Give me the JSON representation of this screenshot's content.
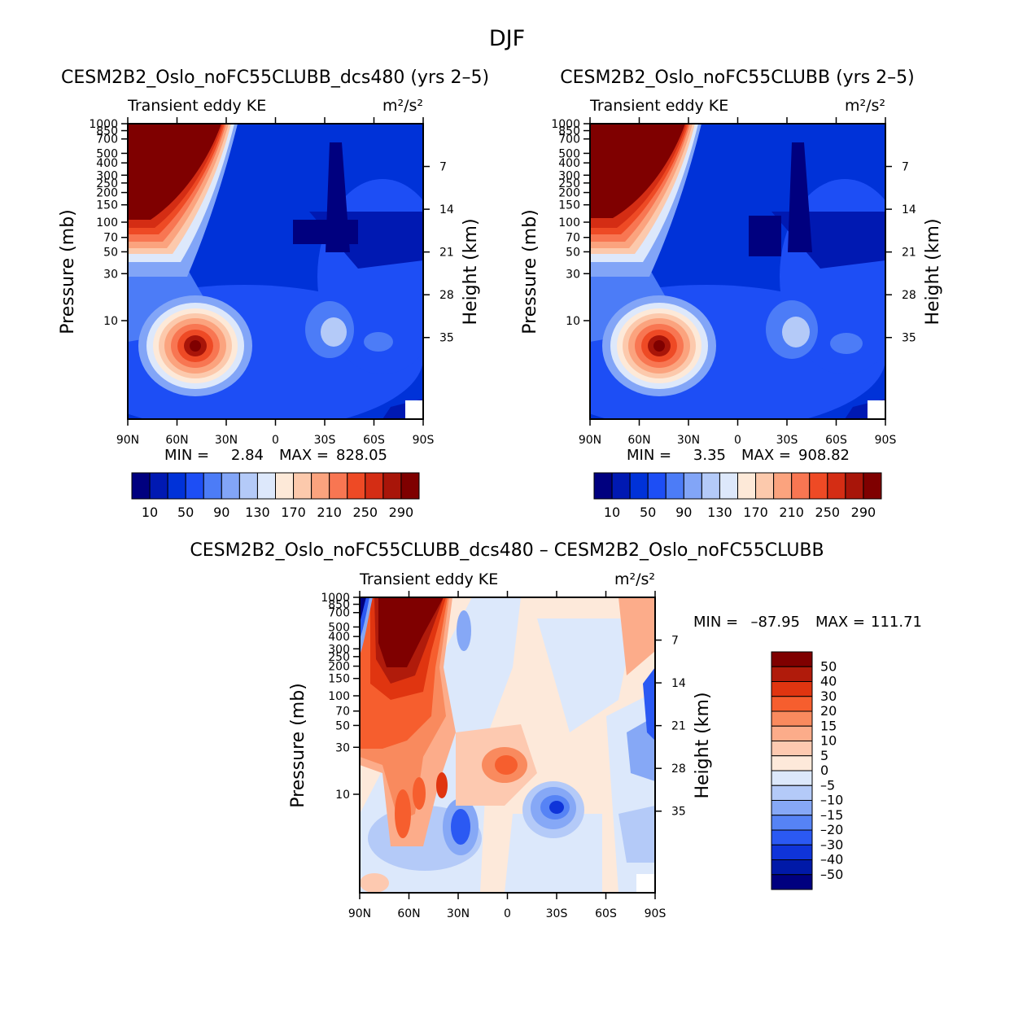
{
  "figure": {
    "title": "DJF"
  },
  "panels": {
    "a": {
      "title": "CESM2B2_Oslo_noFC55CLUBB_dcs480 (yrs 2–5)",
      "min_label": "MIN =",
      "min_value": "2.84",
      "max_label": "MAX =",
      "max_value": "828.05"
    },
    "b": {
      "title": "CESM2B2_Oslo_noFC55CLUBB (yrs 2–5)",
      "min_label": "MIN =",
      "min_value": "3.35",
      "max_label": "MAX =",
      "max_value": "908.82"
    },
    "c": {
      "title": "CESM2B2_Oslo_noFC55CLUBB_dcs480 – CESM2B2_Oslo_noFC55CLUBB",
      "min_label": "MIN =",
      "min_value": "–87.95",
      "max_label": "MAX =",
      "max_value": "111.71"
    }
  },
  "chart_data": [
    {
      "type": "heatmap",
      "panel": "a",
      "title": "CESM2B2_Oslo_noFC55CLUBB_dcs480 (yrs 2–5)",
      "left_string": "Transient eddy KE",
      "units": "m²/s²",
      "xlabel": "",
      "ylabel": "Pressure (mb)",
      "y2label": "Height (km)",
      "x_ticks": [
        "90N",
        "60N",
        "30N",
        "0",
        "30S",
        "60S",
        "90S"
      ],
      "y_ticks": [
        "10",
        "30",
        "50",
        "70",
        "100",
        "150",
        "200",
        "250",
        "300",
        "400",
        "500",
        "700",
        "850",
        "1000"
      ],
      "y2_ticks": [
        "35",
        "28",
        "21",
        "14",
        "7"
      ],
      "contour_levels": [
        10,
        30,
        50,
        70,
        90,
        110,
        130,
        150,
        170,
        190,
        210,
        230,
        250,
        270,
        290
      ],
      "colorbar_labels": [
        "10",
        "50",
        "90",
        "130",
        "170",
        "210",
        "250",
        "290"
      ],
      "min": 2.84,
      "max": 828.05
    },
    {
      "type": "heatmap",
      "panel": "b",
      "title": "CESM2B2_Oslo_noFC55CLUBB (yrs 2–5)",
      "left_string": "Transient eddy KE",
      "units": "m²/s²",
      "xlabel": "",
      "ylabel": "Pressure (mb)",
      "y2label": "Height (km)",
      "x_ticks": [
        "90N",
        "60N",
        "30N",
        "0",
        "30S",
        "60S",
        "90S"
      ],
      "y_ticks": [
        "10",
        "30",
        "50",
        "70",
        "100",
        "150",
        "200",
        "250",
        "300",
        "400",
        "500",
        "700",
        "850",
        "1000"
      ],
      "y2_ticks": [
        "35",
        "28",
        "21",
        "14",
        "7"
      ],
      "contour_levels": [
        10,
        30,
        50,
        70,
        90,
        110,
        130,
        150,
        170,
        190,
        210,
        230,
        250,
        270,
        290
      ],
      "colorbar_labels": [
        "10",
        "50",
        "90",
        "130",
        "170",
        "210",
        "250",
        "290"
      ],
      "min": 3.35,
      "max": 908.82
    },
    {
      "type": "heatmap",
      "panel": "c",
      "title": "CESM2B2_Oslo_noFC55CLUBB_dcs480 – CESM2B2_Oslo_noFC55CLUBB",
      "left_string": "Transient eddy KE",
      "units": "m²/s²",
      "xlabel": "",
      "ylabel": "Pressure (mb)",
      "y2label": "Height (km)",
      "x_ticks": [
        "90N",
        "60N",
        "30N",
        "0",
        "30S",
        "60S",
        "90S"
      ],
      "y_ticks": [
        "10",
        "30",
        "50",
        "70",
        "100",
        "150",
        "200",
        "250",
        "300",
        "400",
        "500",
        "700",
        "850",
        "1000"
      ],
      "y2_ticks": [
        "35",
        "28",
        "21",
        "14",
        "7"
      ],
      "colorbar_labels": [
        "50",
        "40",
        "30",
        "20",
        "15",
        "10",
        "5",
        "0",
        "–5",
        "–10",
        "–15",
        "–20",
        "–30",
        "–40",
        "–50"
      ],
      "min": -87.95,
      "max": 111.71
    }
  ],
  "colors": {
    "abs_palette": [
      "#00007f",
      "#0019b2",
      "#0032d8",
      "#1d4ef5",
      "#4c7cf7",
      "#82a5f7",
      "#b4caf8",
      "#dde8fb",
      "#fde9d8",
      "#fcc9ac",
      "#fba37e",
      "#f87652",
      "#ee4a25",
      "#d42d14",
      "#a81509",
      "#7f0000"
    ],
    "diff_palette": [
      "#7f0000",
      "#b01b0b",
      "#e03510",
      "#f65e2e",
      "#f98a5e",
      "#fcac8a",
      "#fdc9b0",
      "#fde9da",
      "#dce8fb",
      "#b4caf8",
      "#86a8f6",
      "#5683f5",
      "#2b59f3",
      "#0f34d9",
      "#0019a8",
      "#00007f"
    ]
  }
}
